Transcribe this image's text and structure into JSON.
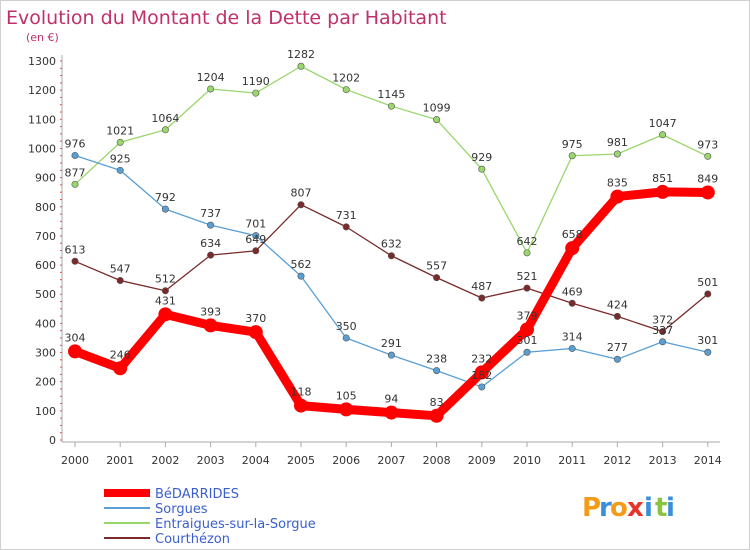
{
  "chart_data": {
    "type": "line",
    "title": "Evolution du Montant de la Dette par Habitant",
    "ylabel": "(en €)",
    "x": [
      "2000",
      "2001",
      "2002",
      "2003",
      "2004",
      "2005",
      "2006",
      "2007",
      "2008",
      "2009",
      "2010",
      "2011",
      "2012",
      "2013",
      "2014"
    ],
    "ylim": [
      0,
      1300
    ],
    "yticks": [
      0,
      100,
      200,
      300,
      400,
      500,
      600,
      700,
      800,
      900,
      1000,
      1100,
      1200,
      1300
    ],
    "grid": false,
    "legend": "bottom-left",
    "series": [
      {
        "name": "Entraigues-sur-la-Sorgue",
        "color": "#99d66b",
        "values": [
          877,
          1021,
          1064,
          1204,
          1190,
          1282,
          1202,
          1145,
          1099,
          929,
          642,
          975,
          981,
          1047,
          973
        ]
      },
      {
        "name": "Sorgues",
        "color": "#5a9fd4",
        "values": [
          976,
          925,
          792,
          737,
          701,
          562,
          350,
          291,
          238,
          182,
          301,
          314,
          277,
          337,
          301
        ]
      },
      {
        "name": "Courthézon",
        "color": "#7a2a2a",
        "values": [
          613,
          547,
          512,
          634,
          649,
          807,
          731,
          632,
          557,
          487,
          521,
          469,
          424,
          372,
          501
        ]
      },
      {
        "name": "BéDARRIDES",
        "color": "#ff0000",
        "values": [
          304,
          246,
          431,
          393,
          370,
          118,
          105,
          94,
          83,
          232,
          379,
          658,
          835,
          851,
          849
        ]
      }
    ]
  },
  "logo": {
    "text": "Proxiti",
    "letters": [
      "P",
      "r",
      "o",
      "x",
      "i",
      "t",
      "i"
    ],
    "colors": [
      "#f39c1a",
      "#3a8fd8",
      "#f39c1a",
      "#e8332a",
      "#3a8fd8",
      "#8ac43f",
      "#3a8fd8"
    ]
  }
}
